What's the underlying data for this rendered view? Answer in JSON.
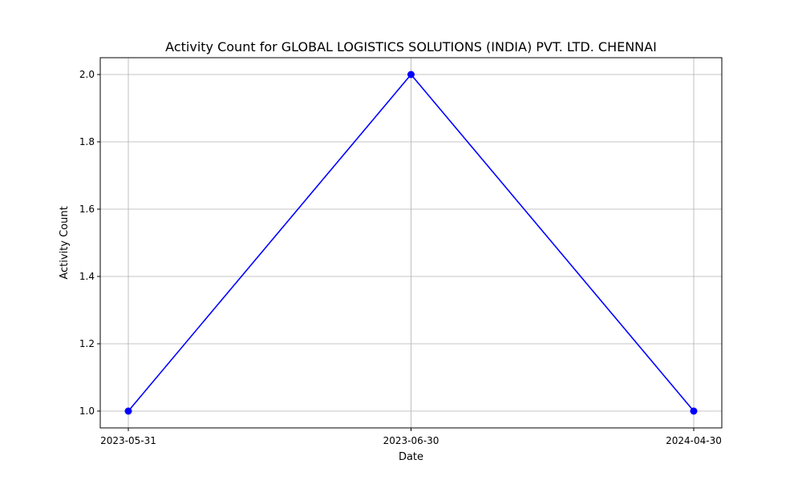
{
  "chart_data": {
    "type": "line",
    "title": "Activity Count for GLOBAL LOGISTICS SOLUTIONS (INDIA) PVT. LTD. CHENNAI",
    "xlabel": "Date",
    "ylabel": "Activity Count",
    "x": [
      "2023-05-31",
      "2023-06-30",
      "2024-04-30"
    ],
    "series": [
      {
        "values": [
          1.0,
          2.0,
          1.0
        ],
        "color": "#0000ff",
        "marker": "circle"
      }
    ],
    "x_scale": "categorical",
    "ylim": [
      0.95,
      2.05
    ],
    "yticks": [
      1.0,
      1.2,
      1.4,
      1.6,
      1.8,
      2.0
    ],
    "ytick_labels": [
      "1.0",
      "1.2",
      "1.4",
      "1.6",
      "1.8",
      "2.0"
    ],
    "grid": true,
    "legend": "none"
  }
}
